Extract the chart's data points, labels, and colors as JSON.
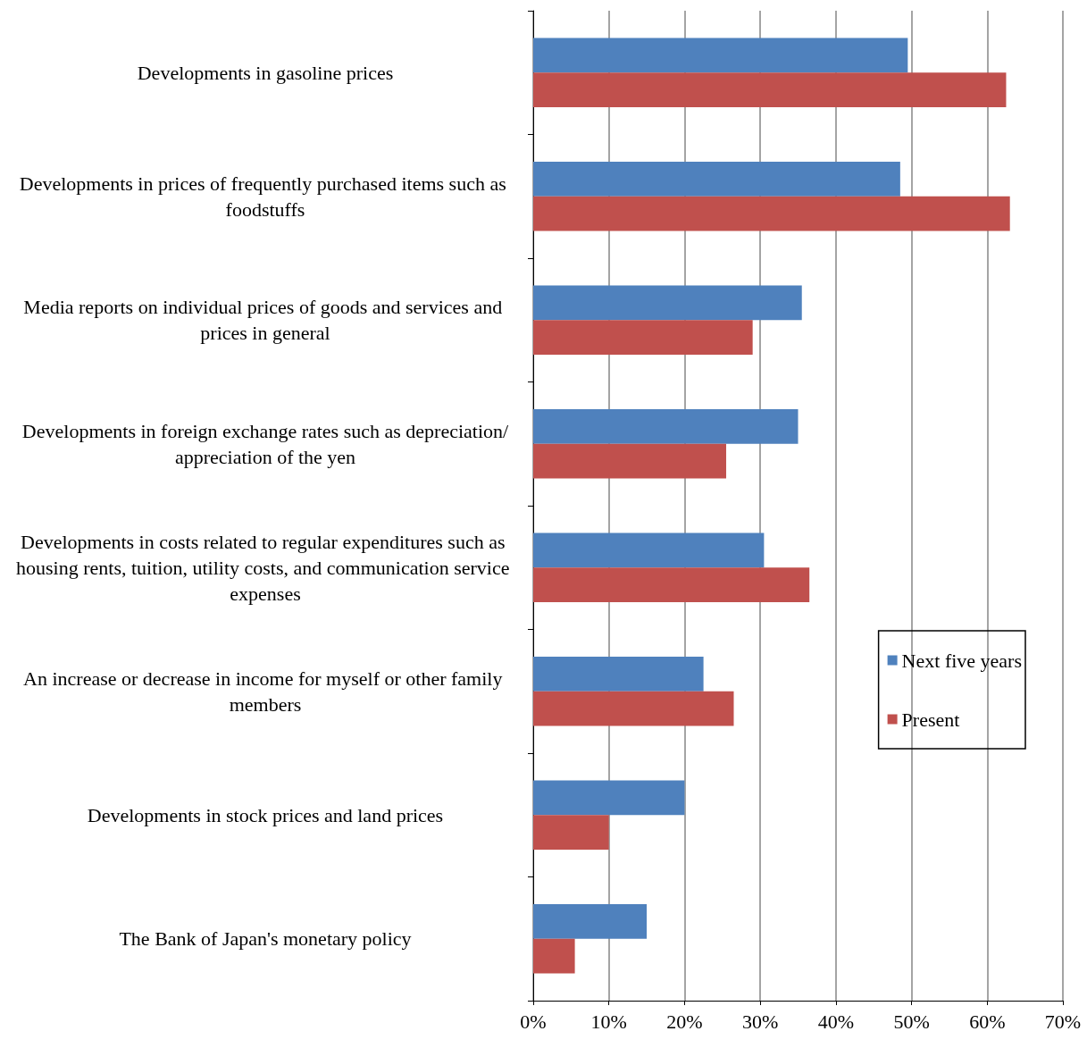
{
  "chart_data": {
    "type": "bar",
    "orientation": "horizontal",
    "categories": [
      "Developments in gasoline prices",
      "Developments in prices of frequently purchased items such as foodstuffs",
      "Media reports on individual prices of goods and services and prices in general",
      "Developments in foreign exchange rates such as depreciation/appreciation of the yen",
      "Developments in costs related to regular expenditures such as housing rents, tuition, utility costs, and communication service expenses",
      "An increase or decrease in income for myself or other family members",
      "Developments in stock prices and land prices",
      "The Bank of Japan's monetary policy"
    ],
    "series": [
      {
        "name": "Next five years",
        "color": "#4f81bd",
        "values": [
          49.5,
          48.5,
          35.5,
          35,
          30.5,
          22.5,
          20,
          15
        ]
      },
      {
        "name": "Present",
        "color": "#c0504d",
        "values": [
          62.5,
          63,
          29,
          25.5,
          36.5,
          26.5,
          10,
          5.5
        ]
      }
    ],
    "xlim": [
      0,
      70
    ],
    "xticks": [
      {
        "value": 0,
        "label": "0%"
      },
      {
        "value": 10,
        "label": "10%"
      },
      {
        "value": 20,
        "label": "20%"
      },
      {
        "value": 30,
        "label": "30%"
      },
      {
        "value": 40,
        "label": "40%"
      },
      {
        "value": 50,
        "label": "50%"
      },
      {
        "value": 60,
        "label": "60%"
      },
      {
        "value": 70,
        "label": "70%"
      }
    ],
    "grid": "x",
    "legend": "right"
  }
}
